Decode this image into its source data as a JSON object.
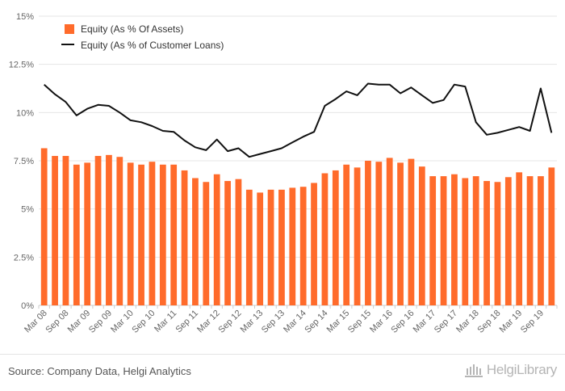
{
  "chart_data": {
    "type": "bar",
    "title": "",
    "xlabel": "",
    "ylabel": "",
    "ylim": [
      0,
      15
    ],
    "yticks": [
      "0%",
      "2.5%",
      "5%",
      "7.5%",
      "10%",
      "12.5%",
      "15%"
    ],
    "ytick_values": [
      0,
      2.5,
      5,
      7.5,
      10,
      12.5,
      15
    ],
    "categories": [
      "Mar 08",
      "Jun 08",
      "Sep 08",
      "Dec 08",
      "Mar 09",
      "Jun 09",
      "Sep 09",
      "Dec 09",
      "Mar 10",
      "Jun 10",
      "Sep 10",
      "Dec 10",
      "Mar 11",
      "Jun 11",
      "Sep 11",
      "Dec 11",
      "Mar 12",
      "Jun 12",
      "Sep 12",
      "Dec 12",
      "Mar 13",
      "Jun 13",
      "Sep 13",
      "Dec 13",
      "Mar 14",
      "Jun 14",
      "Sep 14",
      "Dec 14",
      "Mar 15",
      "Jun 15",
      "Sep 15",
      "Dec 15",
      "Mar 16",
      "Jun 16",
      "Sep 16",
      "Dec 16",
      "Mar 17",
      "Jun 17",
      "Sep 17",
      "Dec 17",
      "Mar 18",
      "Jun 18",
      "Sep 18",
      "Dec 18",
      "Mar 19",
      "Jun 19",
      "Sep 19",
      "Dec 19"
    ],
    "xtick_labels": [
      "Mar 08",
      "Sep 08",
      "Mar 09",
      "Sep 09",
      "Mar 10",
      "Sep 10",
      "Mar 11",
      "Sep 11",
      "Mar 12",
      "Sep 12",
      "Mar 13",
      "Sep 13",
      "Mar 14",
      "Sep 14",
      "Mar 15",
      "Sep 15",
      "Mar 16",
      "Sep 16",
      "Mar 17",
      "Sep 17",
      "Mar 18",
      "Sep 18",
      "Mar 19",
      "Sep 19"
    ],
    "series": [
      {
        "name": "Equity (As % Of Assets)",
        "type": "bar",
        "color": "#ff6b2b",
        "values": [
          8.15,
          7.75,
          7.75,
          7.3,
          7.4,
          7.75,
          7.8,
          7.7,
          7.4,
          7.3,
          7.45,
          7.3,
          7.3,
          7.0,
          6.6,
          6.4,
          6.8,
          6.45,
          6.55,
          6.0,
          5.85,
          6.0,
          6.0,
          6.1,
          6.15,
          6.35,
          6.85,
          7.0,
          7.3,
          7.15,
          7.5,
          7.45,
          7.65,
          7.4,
          7.6,
          7.2,
          6.7,
          6.7,
          6.8,
          6.6,
          6.7,
          6.45,
          6.4,
          6.65,
          6.9,
          6.7,
          6.7,
          7.15
        ]
      },
      {
        "name": "Equity (As % of Customer Loans)",
        "type": "line",
        "color": "#111111",
        "values": [
          11.45,
          10.95,
          10.55,
          9.85,
          10.2,
          10.4,
          10.35,
          10.0,
          9.6,
          9.5,
          9.3,
          9.05,
          9.0,
          8.55,
          8.2,
          8.05,
          8.6,
          8.0,
          8.15,
          7.7,
          7.85,
          8.0,
          8.15,
          8.45,
          8.75,
          9.0,
          10.35,
          10.7,
          11.1,
          10.9,
          11.5,
          11.45,
          11.45,
          11.0,
          11.3,
          10.9,
          10.5,
          10.65,
          11.45,
          11.35,
          9.5,
          8.85,
          8.95,
          9.1,
          9.25,
          9.05,
          11.25,
          8.95
        ]
      }
    ],
    "grid": true,
    "legend": "top-left"
  },
  "footer": {
    "source": "Source: Company Data, Helgi Analytics",
    "brand": "HelgiLibrary"
  },
  "icons": {
    "logo": "library-building-icon"
  }
}
